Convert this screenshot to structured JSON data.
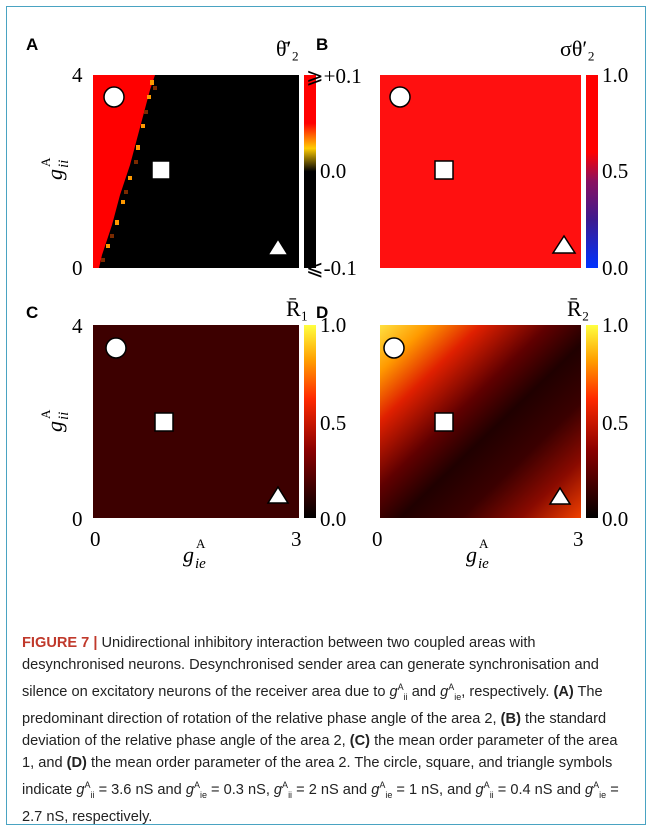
{
  "panels": [
    {
      "label": "A",
      "colorbar_title": "θ̄′₂",
      "cbar_ticks": [
        "⩾+0.1",
        "0.0",
        "⩽-0.1"
      ],
      "colormap": "diverging-black-red-yellow",
      "y_ticks": [
        "4",
        "0"
      ],
      "x_ticks": []
    },
    {
      "label": "B",
      "colorbar_title": "σθ′₂",
      "cbar_ticks": [
        "1.0",
        "0.5",
        "0.0"
      ],
      "colormap": "red-purple-blue",
      "y_ticks": [],
      "x_ticks": []
    },
    {
      "label": "C",
      "colorbar_title": "R̄₁",
      "cbar_ticks": [
        "1.0",
        "0.5",
        "0.0"
      ],
      "colormap": "hot",
      "y_ticks": [
        "4",
        "0"
      ],
      "x_ticks": [
        "0",
        "3"
      ]
    },
    {
      "label": "D",
      "colorbar_title": "R̄₂",
      "cbar_ticks": [
        "1.0",
        "0.5",
        "0.0"
      ],
      "colormap": "hot",
      "y_ticks": [],
      "x_ticks": [
        "0",
        "3"
      ]
    }
  ],
  "y_axis_label": "g",
  "y_axis_sub": "ii",
  "x_axis_label": "g",
  "x_axis_sub": "ie",
  "axis_sup": "A",
  "markers": {
    "circle": {
      "g_ii": 3.6,
      "g_ie": 0.3
    },
    "square": {
      "g_ii": 2,
      "g_ie": 1
    },
    "triangle": {
      "g_ii": 0.4,
      "g_ie": 2.7
    }
  },
  "caption": {
    "lead": "FIGURE 7 |",
    "text1": " Unidirectional inhibitory interaction between two coupled areas with desynchronised neurons. Desynchronised sender area can generate synchronisation and silence on excitatory neurons of the receiver area due to ",
    "text2": " and ",
    "text3": ", respectively. ",
    "partA": "(A)",
    "textA": " The predominant direction of rotation of the relative phase angle of the area 2, ",
    "partB": "(B)",
    "textB": " the standard deviation of the relative phase angle of the area 2, ",
    "partC": "(C)",
    "textC": " the mean order parameter of the area 1, and ",
    "partD": "(D)",
    "textD": " the mean order parameter of the area 2. The circle, square, and triangle symbols indicate ",
    "sym1": "g",
    "vals": [
      "= 3.6 nS",
      "= 0.3 nS",
      "= 2 nS",
      "= 1 nS",
      "= 0.4 nS",
      "= 2.7 nS"
    ],
    "end": ", respectively."
  }
}
